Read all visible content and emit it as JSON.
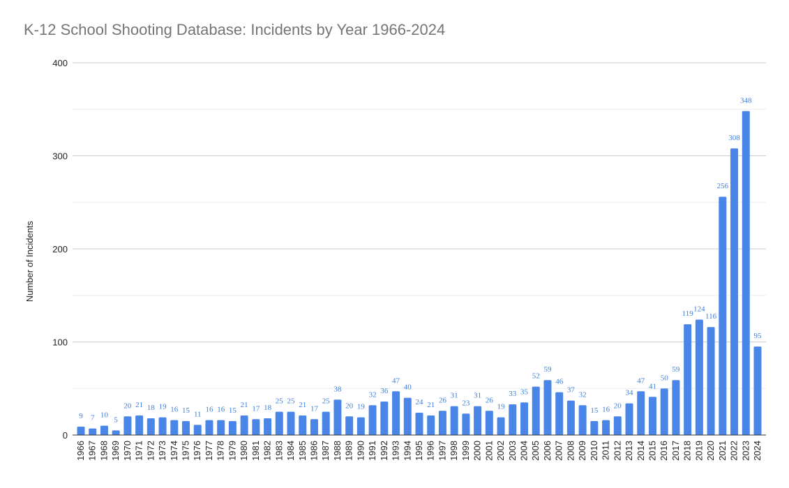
{
  "chart_data": {
    "type": "bar",
    "title": "K-12 School Shooting Database: Incidents by Year 1966-2024",
    "xlabel": "",
    "ylabel": "Number of Incidents",
    "ylim": [
      0,
      400
    ],
    "y_ticks": [
      0,
      100,
      200,
      300,
      400
    ],
    "grid": true,
    "bar_color": "#4a86e8",
    "label_color": "#3b7ddd",
    "categories": [
      "1966",
      "1967",
      "1968",
      "1969",
      "1970",
      "1971",
      "1972",
      "1973",
      "1974",
      "1975",
      "1976",
      "1977",
      "1978",
      "1979",
      "1980",
      "1981",
      "1982",
      "1983",
      "1984",
      "1985",
      "1986",
      "1987",
      "1988",
      "1989",
      "1990",
      "1991",
      "1992",
      "1993",
      "1994",
      "1995",
      "1996",
      "1997",
      "1998",
      "1999",
      "2000",
      "2001",
      "2002",
      "2003",
      "2004",
      "2005",
      "2006",
      "2007",
      "2008",
      "2009",
      "2010",
      "2011",
      "2012",
      "2013",
      "2014",
      "2015",
      "2016",
      "2017",
      "2018",
      "2019",
      "2020",
      "2021",
      "2022",
      "2023",
      "2024"
    ],
    "values": [
      9,
      7,
      10,
      5,
      20,
      21,
      18,
      19,
      16,
      15,
      11,
      16,
      16,
      15,
      21,
      17,
      18,
      25,
      25,
      21,
      17,
      25,
      38,
      20,
      19,
      32,
      36,
      47,
      40,
      24,
      21,
      26,
      31,
      23,
      31,
      26,
      19,
      33,
      35,
      52,
      59,
      46,
      37,
      32,
      15,
      16,
      20,
      34,
      47,
      41,
      50,
      59,
      119,
      124,
      116,
      256,
      308,
      348,
      95
    ],
    "data_labels": [
      "9",
      "7",
      "10",
      "5",
      "20",
      "21",
      "18",
      "19",
      "16",
      "15",
      "11",
      "16",
      "16",
      "15",
      "21",
      "17",
      "18",
      "25",
      "25",
      "21",
      "17",
      "25",
      "38",
      "20",
      "19",
      "32",
      "36",
      "47",
      "40",
      "24",
      "21",
      "26",
      "31",
      "23",
      "31",
      "26",
      "19",
      "33",
      "35",
      "52",
      "59",
      "46",
      "37",
      "32",
      "15",
      "16",
      "20",
      "34",
      "47",
      "41",
      "50",
      "59",
      "119",
      "124",
      "116",
      "256",
      "308",
      "348",
      "95"
    ]
  }
}
